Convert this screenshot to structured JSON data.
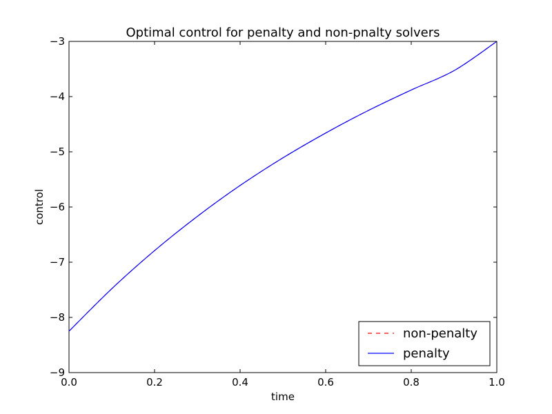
{
  "chart_data": {
    "type": "line",
    "title": "Optimal control for penalty and non-pnalty solvers",
    "xlabel": "time",
    "ylabel": "control",
    "xlim": [
      0.0,
      1.0
    ],
    "ylim": [
      -9,
      -3
    ],
    "xticks": [
      0.0,
      0.2,
      0.4,
      0.6,
      0.8,
      1.0
    ],
    "xtick_labels": [
      "0.0",
      "0.2",
      "0.4",
      "0.6",
      "0.8",
      "1.0"
    ],
    "yticks": [
      -9,
      -8,
      -7,
      -6,
      -5,
      -4,
      -3
    ],
    "ytick_labels": [
      "−9",
      "−8",
      "−7",
      "−6",
      "−5",
      "−4",
      "−3"
    ],
    "grid": false,
    "legend": {
      "position": "lower-right"
    },
    "series": [
      {
        "name": "non-penalty",
        "color": "#ff0000",
        "style": "dashed",
        "x": [
          0.0,
          0.1,
          0.2,
          0.3,
          0.4,
          0.5,
          0.6,
          0.7,
          0.8,
          0.9,
          1.0
        ],
        "y": [
          -8.25,
          -7.48,
          -6.79,
          -6.17,
          -5.61,
          -5.11,
          -4.66,
          -4.25,
          -3.88,
          -3.53,
          -3.0
        ]
      },
      {
        "name": "penalty",
        "color": "#0000ff",
        "style": "solid",
        "x": [
          0.0,
          0.1,
          0.2,
          0.3,
          0.4,
          0.5,
          0.6,
          0.7,
          0.8,
          0.9,
          1.0
        ],
        "y": [
          -8.25,
          -7.48,
          -6.79,
          -6.17,
          -5.61,
          -5.11,
          -4.66,
          -4.25,
          -3.88,
          -3.53,
          -3.0
        ]
      }
    ]
  }
}
